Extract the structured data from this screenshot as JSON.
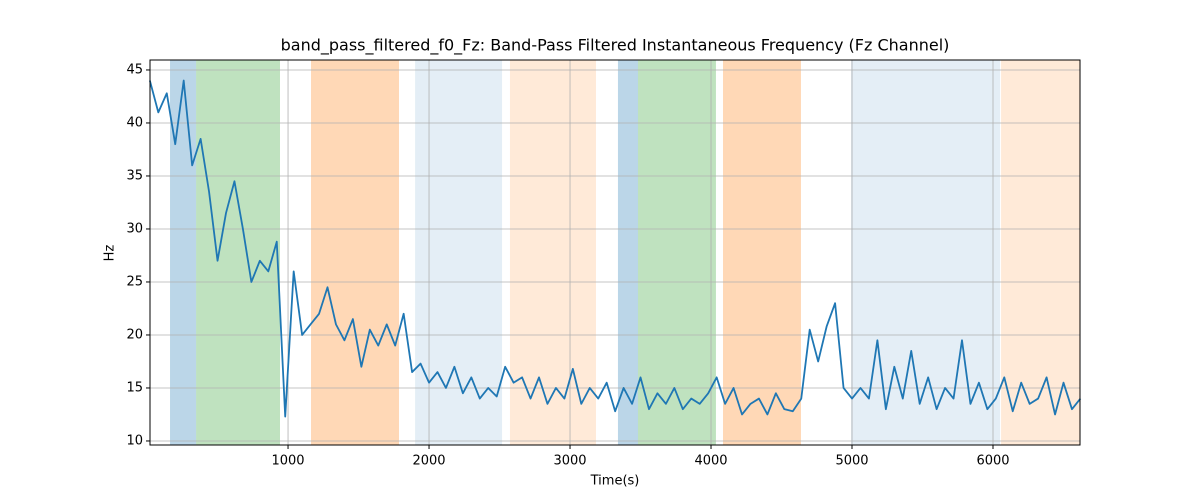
{
  "chart_data": {
    "type": "line",
    "title": "band_pass_filtered_f0_Fz: Band-Pass Filtered Instantaneous Frequency (Fz Channel)",
    "x_label": "Time(s)",
    "y_label": "Hz",
    "x": [
      20,
      80,
      140,
      200,
      260,
      320,
      380,
      440,
      500,
      560,
      620,
      680,
      740,
      800,
      860,
      920,
      980,
      1040,
      1100,
      1160,
      1220,
      1280,
      1340,
      1400,
      1460,
      1520,
      1580,
      1640,
      1700,
      1760,
      1820,
      1880,
      1940,
      2000,
      2060,
      2120,
      2180,
      2240,
      2300,
      2360,
      2420,
      2480,
      2540,
      2600,
      2660,
      2720,
      2780,
      2840,
      2900,
      2960,
      3020,
      3080,
      3140,
      3200,
      3260,
      3320,
      3380,
      3440,
      3500,
      3560,
      3620,
      3680,
      3740,
      3800,
      3860,
      3920,
      3980,
      4040,
      4100,
      4160,
      4220,
      4280,
      4340,
      4400,
      4460,
      4520,
      4580,
      4640,
      4700,
      4760,
      4820,
      4880,
      4940,
      5000,
      5060,
      5120,
      5180,
      5240,
      5300,
      5360,
      5420,
      5480,
      5540,
      5600,
      5660,
      5720,
      5780,
      5840,
      5900,
      5960,
      6020,
      6080,
      6140,
      6200,
      6260,
      6320,
      6380,
      6440,
      6500,
      6560,
      6620
    ],
    "series": [
      {
        "color": "#1f77b4",
        "values": [
          44,
          41,
          42.8,
          38,
          44,
          36,
          38.5,
          33.5,
          27,
          31.5,
          34.5,
          30,
          25,
          27,
          26,
          28.8,
          12.3,
          26,
          20,
          21,
          22,
          24.5,
          21,
          19.5,
          21.5,
          17,
          20.5,
          19,
          21,
          19,
          22,
          16.5,
          17.3,
          15.5,
          16.5,
          15,
          17,
          14.5,
          16,
          14,
          15,
          14.2,
          17,
          15.5,
          16,
          14,
          16,
          13.5,
          15,
          14,
          16.8,
          13.5,
          15,
          14,
          15.5,
          12.8,
          15,
          13.5,
          16,
          13,
          14.5,
          13.5,
          15,
          13,
          14,
          13.5,
          14.5,
          16,
          13.5,
          15,
          12.5,
          13.5,
          14,
          12.5,
          14.5,
          13,
          12.8,
          14,
          20.5,
          17.5,
          20.8,
          23,
          15,
          14,
          15,
          14,
          19.5,
          13,
          17,
          14,
          18.5,
          13.5,
          16,
          13,
          15,
          14,
          19.5,
          13.5,
          15.5,
          13,
          14,
          16,
          12.8,
          15.5,
          13.5,
          14,
          16,
          12.5,
          15.5,
          13,
          14
        ]
      }
    ],
    "shaded_regions": [
      {
        "start": 163,
        "end": 348,
        "color": "#1f77b4",
        "opacity": 0.3
      },
      {
        "start": 348,
        "end": 943,
        "color": "#2ca02c",
        "opacity": 0.3
      },
      {
        "start": 1163,
        "end": 1787,
        "color": "#ff7f0e",
        "opacity": 0.3
      },
      {
        "start": 1901,
        "end": 2518,
        "color": "#1f77b4",
        "opacity": 0.12
      },
      {
        "start": 2574,
        "end": 3184,
        "color": "#ff7f0e",
        "opacity": 0.16
      },
      {
        "start": 3340,
        "end": 3482,
        "color": "#1f77b4",
        "opacity": 0.3
      },
      {
        "start": 3482,
        "end": 4035,
        "color": "#2ca02c",
        "opacity": 0.3
      },
      {
        "start": 4085,
        "end": 4638,
        "color": "#ff7f0e",
        "opacity": 0.3
      },
      {
        "start": 4993,
        "end": 6050,
        "color": "#1f77b4",
        "opacity": 0.12
      },
      {
        "start": 6057,
        "end": 6617,
        "color": "#ff7f0e",
        "opacity": 0.16
      }
    ],
    "xlim": [
      21,
      6617
    ],
    "ylim": [
      9.62,
      45.94
    ],
    "xticks": [
      1000,
      2000,
      3000,
      4000,
      5000,
      6000
    ],
    "yticks": [
      10,
      15,
      20,
      25,
      30,
      35,
      40,
      45
    ],
    "grid": true
  }
}
